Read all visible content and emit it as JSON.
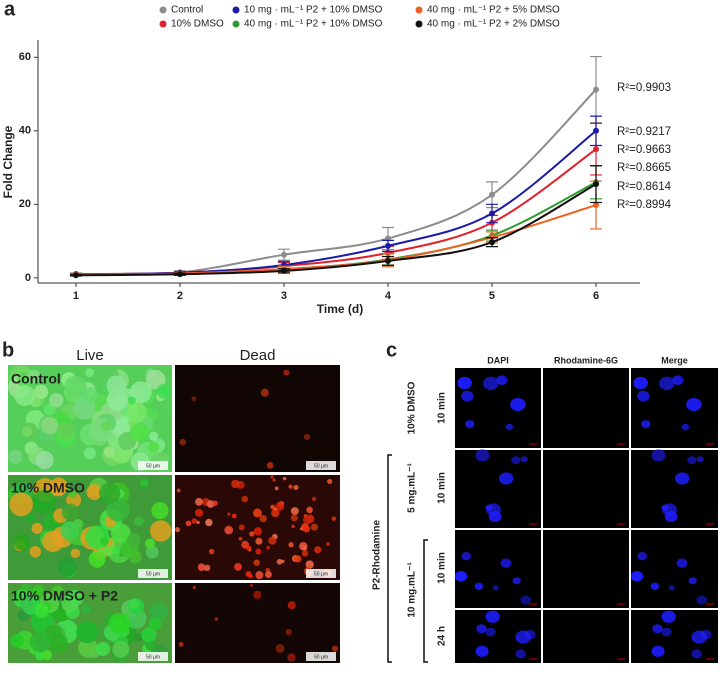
{
  "chart_data": {
    "type": "line",
    "panel_label": "a",
    "xlabel": "Time (d)",
    "ylabel": "Fold Change",
    "x": [
      1,
      2,
      3,
      4,
      5,
      6
    ],
    "xlim": [
      0.635,
      6.423
    ],
    "xticks": [
      1,
      2,
      3,
      4,
      5,
      6
    ],
    "ylim": [
      -1.4,
      64.7
    ],
    "yticks": [
      0,
      20,
      40,
      60
    ],
    "series": [
      {
        "name": "Control",
        "color": "#8c8c8c",
        "values": [
          1.0,
          1.5,
          6.3,
          10.7,
          22.6,
          51.2
        ],
        "errors": [
          0.3,
          0.4,
          1.5,
          3.0,
          3.5,
          9.0
        ],
        "annotation": "R²=0.9903"
      },
      {
        "name": "10% DMSO",
        "color": "#e0202a",
        "values": [
          1.0,
          1.4,
          3.2,
          6.8,
          15.0,
          35.0
        ],
        "errors": [
          0.2,
          0.3,
          1.0,
          1.8,
          2.0,
          7.0
        ],
        "annotation": "R²=0.9663"
      },
      {
        "name": "10 mg · mL⁻¹ P2 + 10% DMSO",
        "color": "#1c1ca8",
        "values": [
          1.0,
          1.4,
          3.5,
          8.7,
          17.5,
          40.0
        ],
        "errors": [
          0.2,
          0.3,
          1.0,
          1.5,
          2.5,
          4.0
        ],
        "annotation": "R²=0.9217"
      },
      {
        "name": "40 mg · mL⁻¹ P2 + 10% DMSO",
        "color": "#2e9a2e",
        "values": [
          0.8,
          1.0,
          2.3,
          5.0,
          11.5,
          26.0
        ],
        "errors": [
          0.2,
          0.3,
          0.8,
          1.5,
          1.5,
          4.5
        ],
        "annotation": "R²=0.8665"
      },
      {
        "name": "40 mg · mL⁻¹ P2 + 5% DMSO",
        "color": "#f06020",
        "values": [
          0.9,
          1.2,
          2.4,
          4.8,
          11.0,
          19.8
        ],
        "errors": [
          0.2,
          0.3,
          0.8,
          1.8,
          1.5,
          6.5
        ],
        "annotation": "R²=0.8994"
      },
      {
        "name": "40 mg · mL⁻¹ P2 + 2% DMSO",
        "color": "#111111",
        "values": [
          0.7,
          1.0,
          1.9,
          4.6,
          9.7,
          25.5
        ],
        "errors": [
          0.2,
          0.3,
          0.6,
          1.2,
          1.2,
          5.0
        ],
        "annotation": "R²=0.8614"
      }
    ]
  },
  "panel_b": {
    "label": "b",
    "columns": [
      "Live",
      "Dead"
    ],
    "rows": [
      "Control",
      "10% DMSO",
      "10% DMSO + P2"
    ],
    "scale_bar": "50 μm"
  },
  "panel_c": {
    "label": "c",
    "columns": [
      "DAPI",
      "Rhodamine-6G",
      "Merge"
    ],
    "rows": [
      {
        "condition": "10% DMSO",
        "time": "10 min"
      },
      {
        "condition": "5 mg.mL⁻¹",
        "time": "10 min"
      },
      {
        "time": "10 min"
      },
      {
        "time": "24 h"
      }
    ],
    "shared_condition": "10 mg.mL⁻¹",
    "group": "P2-Rhodamine"
  }
}
